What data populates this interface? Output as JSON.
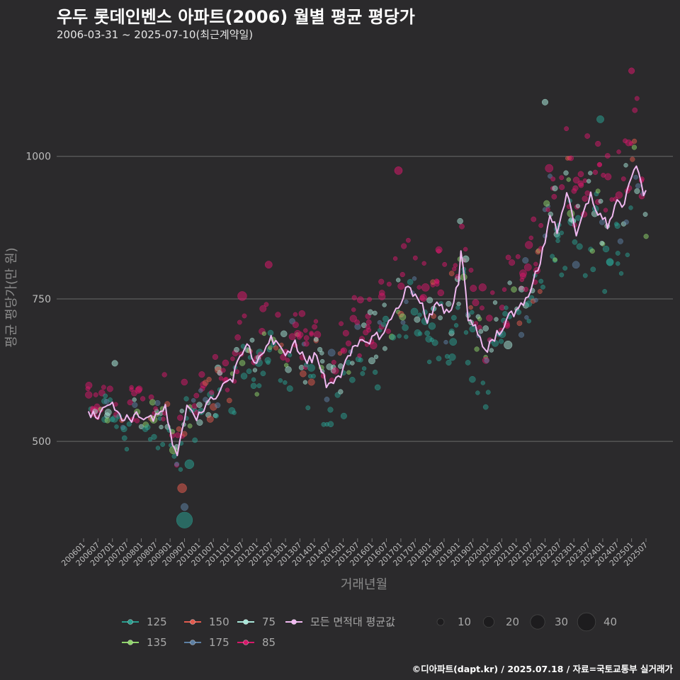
{
  "page": {
    "title": "우두 롯데인벤스 아파트(2006) 월별 평균 평당가",
    "subtitle": "2006-03-31 ~ 2025-07-10(최근계약일)",
    "caption": "©디아파트(dapt.kr) / 2025.07.18 / 자료=국토교통부 실거래가"
  },
  "colors": {
    "background": "#2b2a2c",
    "grid": "#6a6a6a",
    "avg_line": "#f0b8f0",
    "125": "#2a9d8f",
    "135": "#8fd46b",
    "150": "#e05a4e",
    "175": "#5d7fa3",
    "75": "#a8e6d8",
    "85": "#d6186a"
  },
  "chart_data": {
    "type": "scatter",
    "title": "우두 롯데인벤스 아파트(2006) 월별 평균 평당가",
    "xlabel": "거래년월",
    "ylabel": "평균 평당가(만 원)",
    "ylim": [
      330,
      1150
    ],
    "yticks": [
      500,
      750,
      1000
    ],
    "x_start": "2006-01",
    "x_end": "2025-07",
    "x_tick_labels": [
      "200601",
      "200607",
      "200701",
      "200707",
      "200801",
      "200807",
      "200901",
      "200907",
      "201001",
      "201007",
      "201101",
      "201107",
      "201201",
      "201207",
      "201301",
      "201307",
      "201401",
      "201407",
      "201501",
      "201507",
      "201601",
      "201607",
      "201701",
      "201707",
      "201801",
      "201807",
      "201901",
      "201907",
      "202001",
      "202007",
      "202101",
      "202107",
      "202201",
      "202207",
      "202301",
      "202307",
      "202401",
      "202407",
      "202501",
      "202507"
    ],
    "legend_series": [
      {
        "name": "125",
        "color": "#2a9d8f"
      },
      {
        "name": "135",
        "color": "#8fd46b"
      },
      {
        "name": "150",
        "color": "#e05a4e"
      },
      {
        "name": "175",
        "color": "#5d7fa3"
      },
      {
        "name": "75",
        "color": "#a8e6d8"
      },
      {
        "name": "85",
        "color": "#d6186a"
      },
      {
        "name": "모든 면적대 평균값",
        "color": "#f0b8f0"
      }
    ],
    "size_legend": [
      10,
      20,
      30,
      40
    ],
    "average_line": {
      "name": "모든 면적대 평균값",
      "knots": [
        [
          "2006-03",
          555
        ],
        [
          "2006-06",
          540
        ],
        [
          "2006-09",
          565
        ],
        [
          "2007-01",
          562
        ],
        [
          "2007-06",
          540
        ],
        [
          "2008-01",
          545
        ],
        [
          "2008-07",
          540
        ],
        [
          "2008-11",
          560
        ],
        [
          "2009-02",
          490
        ],
        [
          "2009-04",
          470
        ],
        [
          "2009-08",
          565
        ],
        [
          "2009-12",
          545
        ],
        [
          "2010-06",
          570
        ],
        [
          "2010-11",
          600
        ],
        [
          "2011-03",
          610
        ],
        [
          "2011-08",
          670
        ],
        [
          "2012-01",
          640
        ],
        [
          "2012-07",
          680
        ],
        [
          "2012-12",
          655
        ],
        [
          "2013-05",
          670
        ],
        [
          "2013-10",
          640
        ],
        [
          "2014-02",
          650
        ],
        [
          "2014-06",
          600
        ],
        [
          "2014-12",
          620
        ],
        [
          "2015-06",
          665
        ],
        [
          "2015-12",
          680
        ],
        [
          "2016-06",
          690
        ],
        [
          "2016-12",
          740
        ],
        [
          "2017-04",
          770
        ],
        [
          "2017-09",
          750
        ],
        [
          "2017-12",
          710
        ],
        [
          "2018-04",
          740
        ],
        [
          "2018-09",
          720
        ],
        [
          "2019-01",
          780
        ],
        [
          "2019-02",
          840
        ],
        [
          "2019-05",
          720
        ],
        [
          "2019-08",
          700
        ],
        [
          "2019-12",
          660
        ],
        [
          "2020-04",
          680
        ],
        [
          "2020-09",
          715
        ],
        [
          "2021-01",
          725
        ],
        [
          "2021-06",
          760
        ],
        [
          "2021-11",
          810
        ],
        [
          "2022-03",
          900
        ],
        [
          "2022-06",
          870
        ],
        [
          "2022-10",
          935
        ],
        [
          "2023-02",
          860
        ],
        [
          "2023-06",
          910
        ],
        [
          "2023-08",
          935
        ],
        [
          "2023-11",
          900
        ],
        [
          "2024-03",
          880
        ],
        [
          "2024-07",
          920
        ],
        [
          "2024-10",
          915
        ],
        [
          "2025-01",
          960
        ],
        [
          "2025-03",
          990
        ],
        [
          "2025-05",
          945
        ],
        [
          "2025-07",
          932
        ]
      ]
    },
    "scatter_trend": {
      "series_weights": {
        "85": 0.42,
        "125": 0.26,
        "75": 0.12,
        "150": 0.07,
        "135": 0.07,
        "175": 0.06
      },
      "series_offsets": {
        "85": 35,
        "125": -35,
        "75": 0,
        "150": 10,
        "135": -15,
        "175": 0
      },
      "monthly_points": 3,
      "spread": 55
    },
    "outliers": [
      {
        "series": "125",
        "x": "2009-07",
        "y": 362,
        "size": 40
      },
      {
        "series": "150",
        "x": "2009-06",
        "y": 418,
        "size": 18
      },
      {
        "series": "175",
        "x": "2009-07",
        "y": 385,
        "size": 12
      },
      {
        "series": "125",
        "x": "2009-09",
        "y": 460,
        "size": 18
      },
      {
        "series": "75",
        "x": "2007-02",
        "y": 637,
        "size": 8
      },
      {
        "series": "85",
        "x": "2025-01",
        "y": 1150,
        "size": 8
      },
      {
        "series": "75",
        "x": "2022-01",
        "y": 1095,
        "size": 8
      },
      {
        "series": "125",
        "x": "2023-12",
        "y": 1065,
        "size": 12
      },
      {
        "series": "85",
        "x": "2016-12",
        "y": 975,
        "size": 14
      },
      {
        "series": "85",
        "x": "2012-06",
        "y": 810,
        "size": 12
      },
      {
        "series": "85",
        "x": "2011-07",
        "y": 755,
        "size": 18
      },
      {
        "series": "75",
        "x": "2019-04",
        "y": 820,
        "size": 10
      }
    ]
  }
}
